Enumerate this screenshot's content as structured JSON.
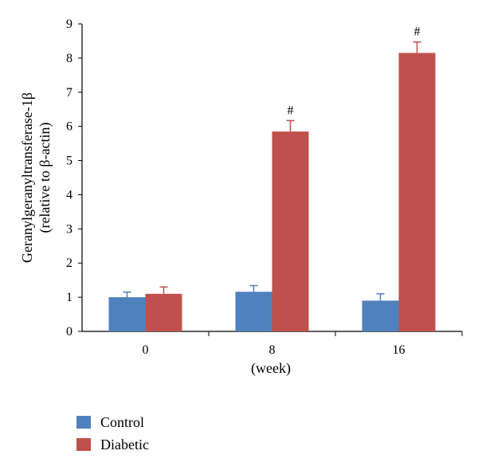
{
  "chart_data": {
    "type": "bar",
    "categories": [
      "0",
      "8",
      "16"
    ],
    "series": [
      {
        "name": "Control",
        "color": "#4f81bd",
        "values": [
          1.0,
          1.16,
          0.9
        ],
        "errors": [
          0.15,
          0.18,
          0.2
        ],
        "annotations": [
          "",
          "",
          ""
        ]
      },
      {
        "name": "Diabetic",
        "color": "#c0504d",
        "values": [
          1.1,
          5.85,
          8.15
        ],
        "errors": [
          0.2,
          0.32,
          0.32
        ],
        "annotations": [
          "",
          "#",
          "#"
        ]
      }
    ],
    "xlabel": "(week)",
    "ylabel_line1": "Geranylgeranyltransferase-1β",
    "ylabel_line2": "(relative to β-actin)",
    "ylim": [
      0,
      9
    ],
    "yticks": [
      0,
      1,
      2,
      3,
      4,
      5,
      6,
      7,
      8,
      9
    ],
    "legend_position": "bottom-left",
    "grid": false
  }
}
